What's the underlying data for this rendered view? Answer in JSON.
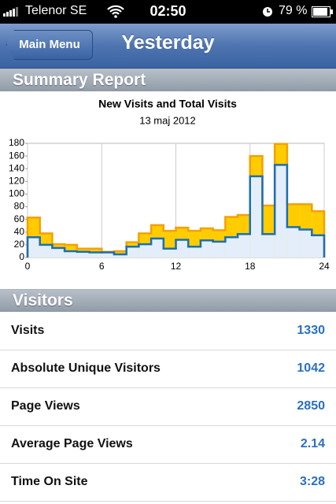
{
  "status": {
    "carrier": "Telenor SE",
    "time": "02:50",
    "battery": "79 %"
  },
  "nav": {
    "back_button": "Main Menu",
    "title": "Yesterday"
  },
  "sections": {
    "summary": "Summary Report",
    "visitors": "Visitors"
  },
  "chart_data": {
    "type": "step-area",
    "title": "New Visits and Total Visits",
    "subtitle": "13 maj 2012",
    "x": [
      0,
      1,
      2,
      3,
      4,
      5,
      6,
      7,
      8,
      9,
      10,
      11,
      12,
      13,
      14,
      15,
      16,
      17,
      18,
      19,
      20,
      21,
      22,
      23
    ],
    "xlim": [
      0,
      24
    ],
    "xticks": [
      0,
      6,
      12,
      18,
      24
    ],
    "ylim": [
      0,
      180
    ],
    "yticks": [
      0,
      20,
      40,
      60,
      80,
      100,
      120,
      140,
      160,
      180
    ],
    "grid": "x",
    "series": [
      {
        "color": "#f5a000",
        "fill_color": "#ffcc00",
        "values": [
          63,
          38,
          21,
          20,
          14,
          14,
          9,
          10,
          24,
          38,
          51,
          42,
          47,
          42,
          46,
          43,
          64,
          67,
          160,
          82,
          179,
          84,
          84,
          73
        ]
      },
      {
        "color": "#1a6fb5",
        "fill_color": "#e4eefa",
        "values": [
          32,
          20,
          15,
          10,
          9,
          8,
          8,
          5,
          17,
          21,
          30,
          14,
          28,
          17,
          27,
          25,
          32,
          37,
          128,
          37,
          146,
          48,
          44,
          35
        ]
      }
    ]
  },
  "table": {
    "rows": [
      [
        "Visits",
        1330
      ],
      [
        "Absolute Unique Visitors",
        1042
      ],
      [
        "Page Views",
        2850
      ],
      [
        "Average Page Views",
        2.14
      ],
      [
        "Time On Site",
        "3:28"
      ]
    ]
  }
}
